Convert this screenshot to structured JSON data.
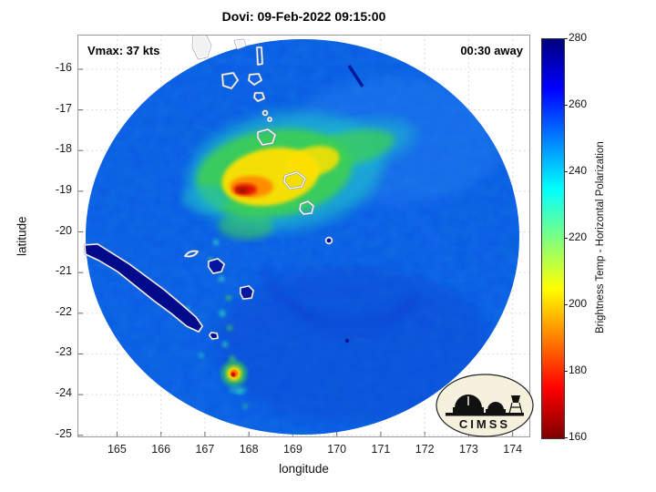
{
  "chart_data": {
    "type": "heatmap",
    "title": "Dovi: 09-Feb-2022 09:15:00",
    "xlabel": "longitude",
    "ylabel": "latitude",
    "x_ticks": [
      165,
      166,
      167,
      168,
      169,
      170,
      171,
      172,
      173,
      174
    ],
    "y_ticks": [
      -16,
      -17,
      -18,
      -19,
      -20,
      -21,
      -22,
      -23,
      -24,
      -25
    ],
    "xlim": [
      164.1,
      174.4
    ],
    "ylim": [
      -15.15,
      -25.05
    ],
    "grid": true,
    "annotations": [
      {
        "id": "vmax",
        "text": "Vmax: 37 kts",
        "position": "top-left"
      },
      {
        "id": "time-offset",
        "text": "00:30 away",
        "position": "top-right"
      }
    ],
    "colorbar": {
      "label": "Brightness Temp - Horizontal Polarization",
      "range": [
        160,
        280
      ],
      "ticks": [
        280,
        260,
        240,
        220,
        200,
        180,
        160
      ],
      "colormap": "jet-reversed",
      "stops_top_to_bottom": [
        "#00007f",
        "#0000ff",
        "#007fff",
        "#00ffff",
        "#7fff7f",
        "#ffff00",
        "#ff7f00",
        "#ff0000",
        "#7f0000"
      ]
    },
    "scan_disk": {
      "center_lon": 169.2,
      "center_lat": -20.1,
      "radius_deg": 4.9,
      "background_temp_K": 260
    },
    "features": [
      {
        "name": "cold-convective-core",
        "lon": 168.4,
        "lat": -18.6,
        "approx_min_temp_K": 185
      },
      {
        "name": "inner-red-hotspot",
        "lon": 167.9,
        "lat": -18.95,
        "approx_temp_K": 175
      },
      {
        "name": "southern-convective-cell",
        "lon": 167.65,
        "lat": -23.45,
        "approx_temp_K": 180
      },
      {
        "name": "new-caledonia-landmass",
        "appearance": "dark navy (~280 K) with white coastline"
      },
      {
        "name": "vanuatu-island-chain",
        "appearance": "white coastline outlines"
      },
      {
        "name": "loyalty-islands",
        "appearance": "white outlined dark patches"
      }
    ]
  },
  "logo": {
    "text": "CIMSS"
  }
}
